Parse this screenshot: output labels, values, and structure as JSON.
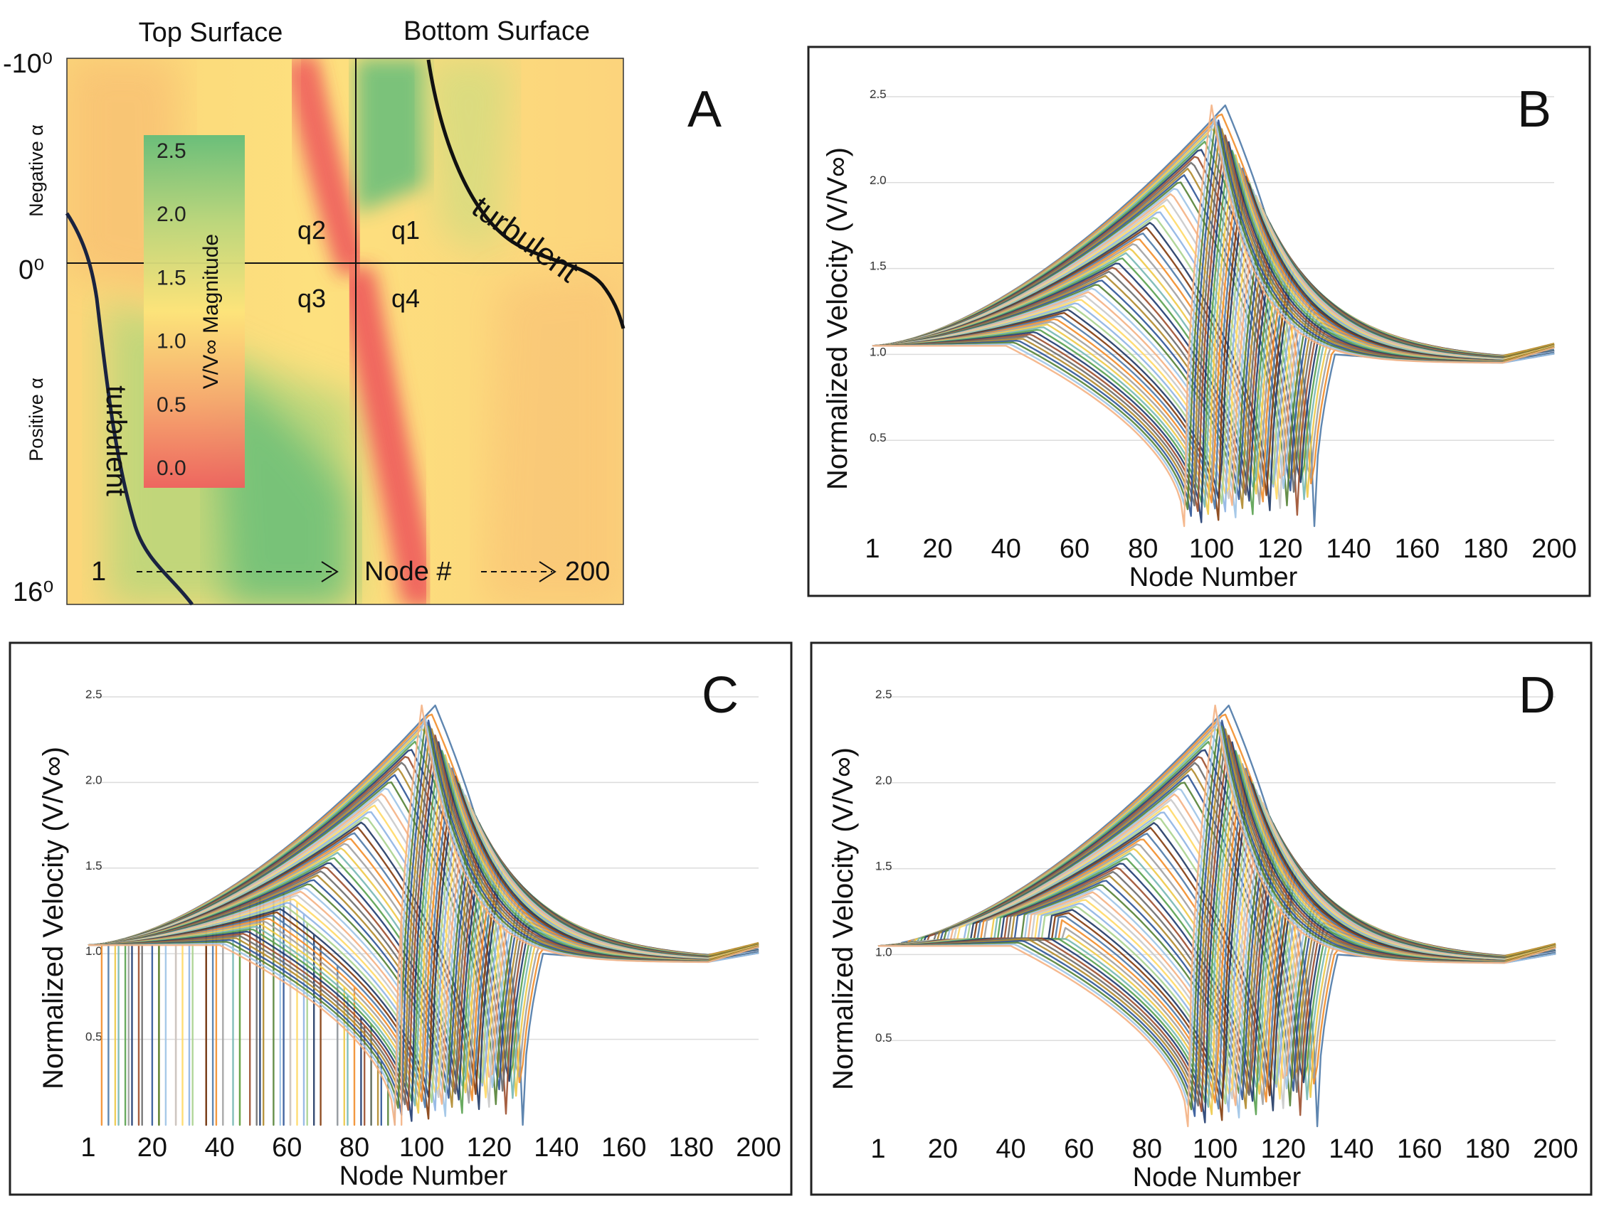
{
  "chart_data": [
    {
      "panel": "A",
      "type": "heatmap",
      "title_top": "Top Surface",
      "title_bottom": "Bottom Surface",
      "y_top_label": "-10⁰",
      "y_mid_label": "0⁰",
      "y_bottom_label": "16⁰",
      "ylabel_neg": "Negative α",
      "ylabel_pos": "Positive α",
      "colorbar_title": "V/V∞ Magnitude",
      "colorbar_ticks": [
        "2.5",
        "2.0",
        "1.5",
        "1.0",
        "0.5",
        "0.0"
      ],
      "colorbar_range": [
        0,
        2.5
      ],
      "colorbar_colors": [
        "#f0605e",
        "#f9a86e",
        "#fde47a",
        "#b9d67c",
        "#63bd7a"
      ],
      "quadrants": [
        "q1",
        "q2",
        "q3",
        "q4"
      ],
      "annotations": {
        "turbulent_top": "turbulent",
        "turbulent_bottom": "turbulent"
      },
      "node_start": "1",
      "node_label": "Node #",
      "node_end": "200",
      "x_range": [
        1,
        200
      ],
      "alpha_range": [
        -10,
        16
      ]
    },
    {
      "panel": "B",
      "type": "line",
      "xlabel": "Node Number",
      "ylabel": "Normalized Velocity (V/V∞)",
      "x_ticks": [
        "1",
        "20",
        "40",
        "60",
        "80",
        "100",
        "120",
        "140",
        "160",
        "180",
        "200"
      ],
      "y_ticks": [
        "2.5",
        "2.0",
        "1.5",
        "1.0",
        "0.5"
      ],
      "x_range": [
        1,
        200
      ],
      "y_range": [
        0,
        2.5
      ],
      "series_count": 54,
      "stagnation_top_nodes": [
        130,
        92
      ],
      "stagnation_bottom_nodes": [
        130,
        104
      ],
      "upper_peak": [
        1.35,
        2.45
      ],
      "lower_peak": [
        1.2,
        2.45
      ],
      "step_nodes": [
        135,
        100
      ],
      "variant": "smooth"
    },
    {
      "panel": "C",
      "type": "line",
      "xlabel": "Node Number",
      "ylabel": "Normalized Velocity (V/V∞)",
      "x_ticks": [
        "1",
        "20",
        "40",
        "60",
        "80",
        "100",
        "120",
        "140",
        "160",
        "180",
        "200"
      ],
      "y_ticks": [
        "2.5",
        "2.0",
        "1.5",
        "1.0",
        "0.5"
      ],
      "x_range": [
        1,
        200
      ],
      "y_range": [
        0,
        2.5
      ],
      "series_count": 54,
      "variant": "dropouts"
    },
    {
      "panel": "D",
      "type": "line",
      "xlabel": "Node Number",
      "ylabel": "Normalized Velocity (V/V∞)",
      "x_ticks": [
        "1",
        "20",
        "40",
        "60",
        "80",
        "100",
        "120",
        "140",
        "160",
        "180",
        "200"
      ],
      "y_ticks": [
        "2.5",
        "2.0",
        "1.5",
        "1.0",
        "0.5"
      ],
      "x_range": [
        1,
        200
      ],
      "y_range": [
        0,
        2.5
      ],
      "series_count": 54,
      "variant": "steps"
    }
  ],
  "palette": [
    "#4e79a7",
    "#f28e2b",
    "#a0a0a0",
    "#edc948",
    "#76b7b2",
    "#59a14f",
    "#1f3b70",
    "#9c4f2e",
    "#6b6b6b",
    "#b0892c",
    "#2f5597",
    "#548235",
    "#9dc3e6",
    "#f4b183",
    "#c9c9c9",
    "#ffd966",
    "#8fb4e3",
    "#a9d18e",
    "#203864",
    "#843c0c"
  ]
}
